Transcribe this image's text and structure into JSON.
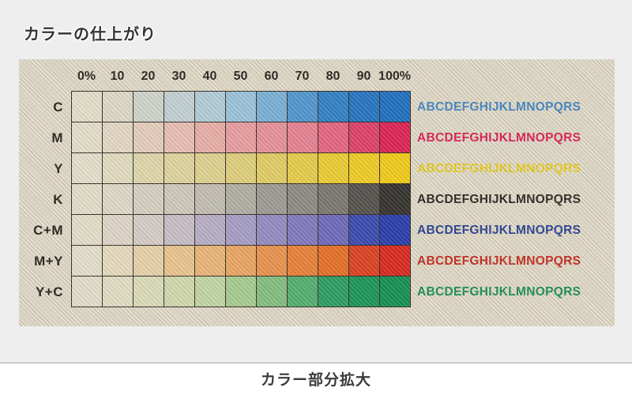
{
  "page": {
    "title": "カラーの仕上がり",
    "caption": "カラー部分拡大",
    "background_color": "#eeeeee",
    "footer_background": "#ffffff",
    "divider_color": "#a9a9a9"
  },
  "chart_data": {
    "type": "heatmap",
    "title": "カラーの仕上がり",
    "caption": "カラー部分拡大",
    "columns": [
      "0%",
      "10",
      "20",
      "30",
      "40",
      "50",
      "60",
      "70",
      "80",
      "90",
      "100%"
    ],
    "rows": [
      {
        "id": "c",
        "label": "C",
        "cells": [
          "#e3ddc9",
          "#dbd7c7",
          "#ccd2ca",
          "#bfced3",
          "#afcad9",
          "#97c0da",
          "#74add5",
          "#4a92cd",
          "#2b7cc4",
          "#1d70c0",
          "#176bbe"
        ],
        "sample_text": "ABCDEFGHIJKLMNOPQRS",
        "text_color": "#3c80c1"
      },
      {
        "id": "m",
        "label": "M",
        "cells": [
          "#e3ddc9",
          "#e1d6c3",
          "#e3cbba",
          "#e6bcb1",
          "#e7aba5",
          "#e69a9e",
          "#e68c96",
          "#e57d8e",
          "#e2607e",
          "#de3a66",
          "#da1c51"
        ],
        "sample_text": "ABCDEFGHIJKLMNOPQRS",
        "text_color": "#d8174d"
      },
      {
        "id": "y",
        "label": "Y",
        "cells": [
          "#e3ddc9",
          "#e0dabf",
          "#ded5a9",
          "#ded29b",
          "#ddd08c",
          "#ddcd78",
          "#dfcb60",
          "#e4ca45",
          "#eaca2c",
          "#eeca1e",
          "#f0c913"
        ],
        "sample_text": "ABCDEFGHIJKLMNOPQRS",
        "text_color": "#e5c714"
      },
      {
        "id": "k",
        "label": "K",
        "cells": [
          "#e2dcc8",
          "#dcd7c5",
          "#d3cec0",
          "#cbc7ba",
          "#bfbbb0",
          "#aeaba2",
          "#9a9790",
          "#898680",
          "#75726d",
          "#4e4c48",
          "#2d2b28"
        ],
        "sample_text": "ABCDEFGHIJKLMNOPQRS",
        "text_color": "#201d1a"
      },
      {
        "id": "cm",
        "label": "C+M",
        "cells": [
          "#e2dcc8",
          "#dbd4c6",
          "#d2cac6",
          "#c4bcc6",
          "#b4abc6",
          "#a29ac5",
          "#8f88c0",
          "#7c74bc",
          "#6a64b8",
          "#3344ae",
          "#2336aa"
        ],
        "sample_text": "ABCDEFGHIJKLMNOPQRS",
        "text_color": "#20398f"
      },
      {
        "id": "my",
        "label": "M+Y",
        "cells": [
          "#e3ddca",
          "#e3d9bd",
          "#e5d0a7",
          "#e7c28b",
          "#e8b275",
          "#e8a25f",
          "#e78f49",
          "#e67c34",
          "#e36a22",
          "#da3b1c",
          "#d52219"
        ],
        "sample_text": "ABCDEFGHIJKLMNOPQRS",
        "text_color": "#bf2318"
      },
      {
        "id": "yc",
        "label": "Y+C",
        "cells": [
          "#e2dcc9",
          "#dfdcc3",
          "#d9dab8",
          "#cfd7ab",
          "#bfd3a3",
          "#a2c98e",
          "#7ebc7d",
          "#4dab6b",
          "#26995d",
          "#149153",
          "#0e8c4e"
        ],
        "sample_text": "ABCDEFGHIJKLMNOPQRS",
        "text_color": "#12894c"
      }
    ],
    "layout": {
      "fabric_background": "#ddd6c2",
      "grid_line_color": "#2b251d",
      "grid": "on",
      "sample_text_position": "right"
    }
  }
}
